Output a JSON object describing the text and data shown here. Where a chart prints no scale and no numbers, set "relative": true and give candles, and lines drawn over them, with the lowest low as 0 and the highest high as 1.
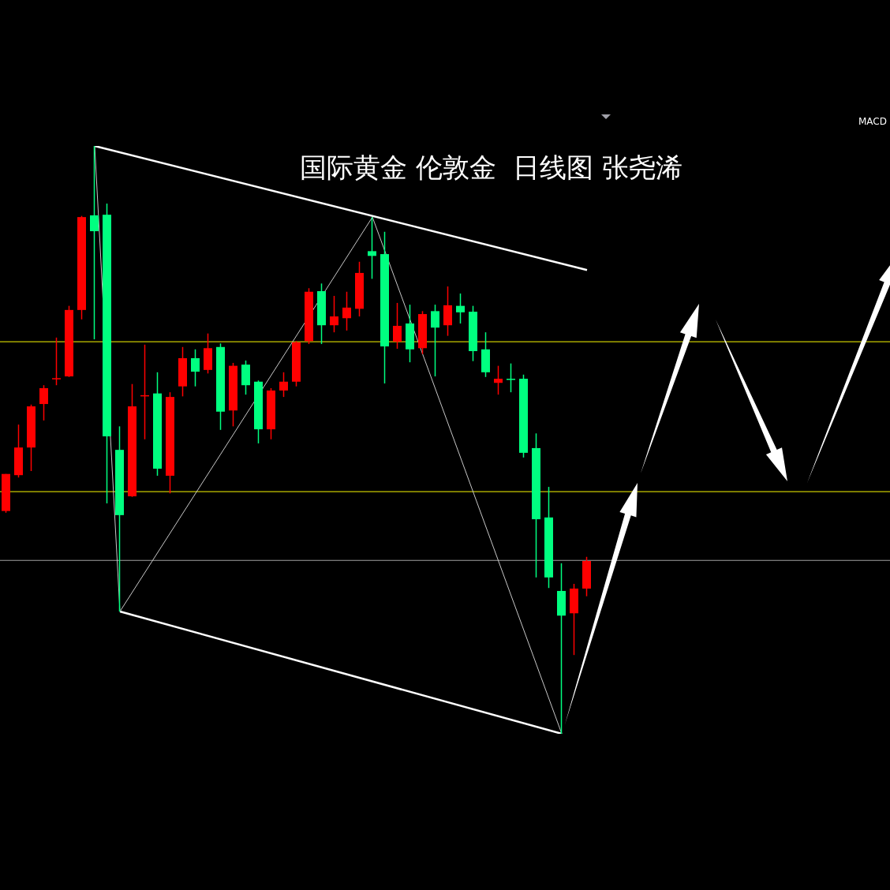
{
  "chart_data": {
    "type": "candlestick",
    "title": "国际黄金 伦敦金  日线图 张尧浠",
    "annotations": [
      "MACD"
    ],
    "relative": true,
    "tick_labels": false,
    "categories": [
      null,
      null,
      null,
      null,
      null,
      null,
      null,
      null,
      null,
      null,
      null,
      null,
      null,
      null,
      null,
      null,
      null,
      null,
      null,
      null,
      null,
      null,
      null,
      null,
      null,
      null,
      null,
      null,
      null,
      null,
      null,
      null,
      null,
      null,
      null,
      null,
      null,
      null,
      null,
      null,
      null,
      null,
      null,
      null,
      null,
      null,
      null
    ],
    "ohlc": [
      [
        0.379,
        0.442,
        0.376,
        0.442
      ],
      [
        0.44,
        0.526,
        0.436,
        0.487
      ],
      [
        0.487,
        0.56,
        0.447,
        0.557
      ],
      [
        0.561,
        0.593,
        0.533,
        0.588
      ],
      [
        0.604,
        0.674,
        0.593,
        0.605
      ],
      [
        0.608,
        0.728,
        0.607,
        0.721
      ],
      [
        0.721,
        0.881,
        0.705,
        0.879
      ],
      [
        0.882,
        1,
        0.671,
        0.855
      ],
      [
        0.883,
        0.902,
        0.392,
        0.506
      ],
      [
        0.483,
        0.523,
        0.208,
        0.372
      ],
      [
        0.404,
        0.595,
        0.403,
        0.557
      ],
      [
        0.574,
        0.662,
        0.501,
        0.576
      ],
      [
        0.579,
        0.615,
        0.439,
        0.451
      ],
      [
        0.439,
        0.581,
        0.409,
        0.573
      ],
      [
        0.591,
        0.658,
        0.574,
        0.639
      ],
      [
        0.639,
        0.654,
        0.591,
        0.616
      ],
      [
        0.619,
        0.681,
        0.613,
        0.656
      ],
      [
        0.658,
        0.664,
        0.517,
        0.548
      ],
      [
        0.55,
        0.631,
        0.523,
        0.626
      ],
      [
        0.628,
        0.635,
        0.577,
        0.593
      ],
      [
        0.599,
        0.601,
        0.494,
        0.518
      ],
      [
        0.518,
        0.588,
        0.501,
        0.584
      ],
      [
        0.584,
        0.615,
        0.573,
        0.599
      ],
      [
        0.599,
        0.668,
        0.591,
        0.666
      ],
      [
        0.668,
        0.758,
        0.663,
        0.752
      ],
      [
        0.753,
        0.766,
        0.663,
        0.695
      ],
      [
        0.695,
        0.745,
        0.683,
        0.71
      ],
      [
        0.707,
        0.752,
        0.686,
        0.725
      ],
      [
        0.723,
        0.803,
        0.71,
        0.784
      ],
      [
        0.821,
        0.879,
        0.774,
        0.813
      ],
      [
        0.816,
        0.854,
        0.596,
        0.659
      ],
      [
        0.667,
        0.733,
        0.655,
        0.694
      ],
      [
        0.698,
        0.73,
        0.632,
        0.654
      ],
      [
        0.656,
        0.719,
        0.646,
        0.714
      ],
      [
        0.719,
        0.73,
        0.608,
        0.691
      ],
      [
        0.695,
        0.761,
        0.677,
        0.729
      ],
      [
        0.728,
        0.749,
        0.698,
        0.717
      ],
      [
        0.718,
        0.728,
        0.634,
        0.651
      ],
      [
        0.654,
        0.683,
        0.607,
        0.615
      ],
      [
        0.597,
        0.626,
        0.577,
        0.604
      ],
      [
        0.604,
        0.63,
        0.581,
        0.603
      ],
      [
        0.604,
        0.611,
        0.47,
        0.478
      ],
      [
        0.486,
        0.511,
        0.266,
        0.365
      ],
      [
        0.368,
        0.42,
        0.248,
        0.266
      ],
      [
        0.243,
        0.29,
        0,
        0.201
      ],
      [
        0.205,
        0.255,
        0.134,
        0.247
      ],
      [
        0.247,
        0.301,
        0.234,
        0.294
      ]
    ],
    "colors": [
      "#ff0000",
      "#ff0000",
      "#ff0000",
      "#ff0000",
      "#ff0000",
      "#ff0000",
      "#ff0000",
      "#00ff80",
      "#00ff80",
      "#00ff80",
      "#ff0000",
      "#ff0000",
      "#00ff80",
      "#ff0000",
      "#ff0000",
      "#00ff80",
      "#ff0000",
      "#00ff80",
      "#ff0000",
      "#00ff80",
      "#00ff80",
      "#ff0000",
      "#ff0000",
      "#ff0000",
      "#ff0000",
      "#00ff80",
      "#ff0000",
      "#ff0000",
      "#ff0000",
      "#00ff80",
      "#00ff80",
      "#ff0000",
      "#00ff80",
      "#ff0000",
      "#00ff80",
      "#ff0000",
      "#00ff80",
      "#00ff80",
      "#00ff80",
      "#ff0000",
      "#00ff80",
      "#00ff80",
      "#00ff80",
      "#00ff80",
      "#00ff80",
      "#ff0000",
      "#ff0000"
    ],
    "series": [
      {
        "type": "line",
        "color": "#ffffff",
        "values": [
          null,
          null,
          null,
          null,
          null,
          null,
          null,
          1,
          null,
          null,
          null,
          null,
          null,
          null,
          null,
          null,
          null,
          null,
          null,
          null,
          null,
          null,
          null,
          null,
          null,
          null,
          null,
          null,
          null,
          null,
          null,
          null,
          null,
          null,
          null,
          null,
          null,
          null,
          null,
          null,
          null,
          null,
          null,
          null,
          null,
          null,
          0.789
        ]
      },
      {
        "type": "line",
        "color": "#ffffff",
        "values": [
          null,
          null,
          null,
          null,
          null,
          null,
          null,
          null,
          null,
          0.208,
          null,
          null,
          null,
          null,
          null,
          null,
          null,
          null,
          null,
          null,
          null,
          null,
          null,
          null,
          null,
          null,
          null,
          null,
          null,
          null,
          null,
          null,
          null,
          null,
          null,
          null,
          null,
          null,
          null,
          null,
          null,
          null,
          null,
          null,
          0,
          null,
          null
        ]
      },
      {
        "type": "line",
        "color": "#c8c8c8",
        "values": [
          null,
          null,
          null,
          null,
          null,
          null,
          null,
          1,
          null,
          0.208,
          null,
          null,
          null,
          null,
          null,
          null,
          null,
          null,
          null,
          null,
          null,
          null,
          null,
          null,
          null,
          null,
          null,
          null,
          null,
          0.879,
          null,
          null,
          null,
          null,
          null,
          null,
          null,
          null,
          null,
          null,
          null,
          null,
          null,
          null,
          0,
          null,
          null
        ]
      }
    ],
    "ref_lines": [
      {
        "axis": "y",
        "value": 0.667,
        "color": "#c8c800"
      },
      {
        "axis": "y",
        "value": 0.412,
        "color": "#c8c800"
      },
      {
        "axis": "y",
        "value": 0.295,
        "color": "#a0a0a0"
      }
    ]
  }
}
